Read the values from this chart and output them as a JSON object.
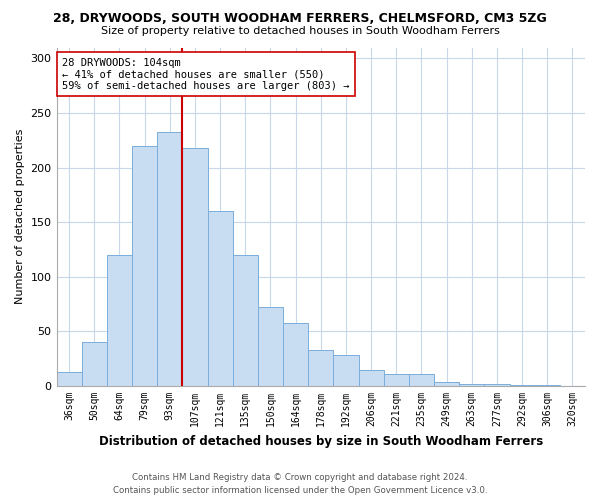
{
  "title_line1": "28, DRYWOODS, SOUTH WOODHAM FERRERS, CHELMSFORD, CM3 5ZG",
  "title_line2": "Size of property relative to detached houses in South Woodham Ferrers",
  "xlabel": "Distribution of detached houses by size in South Woodham Ferrers",
  "ylabel": "Number of detached properties",
  "bar_labels": [
    "36sqm",
    "50sqm",
    "64sqm",
    "79sqm",
    "93sqm",
    "107sqm",
    "121sqm",
    "135sqm",
    "150sqm",
    "164sqm",
    "178sqm",
    "192sqm",
    "206sqm",
    "221sqm",
    "235sqm",
    "249sqm",
    "263sqm",
    "277sqm",
    "292sqm",
    "306sqm",
    "320sqm"
  ],
  "bar_values": [
    13,
    40,
    120,
    220,
    233,
    218,
    160,
    120,
    72,
    58,
    33,
    28,
    15,
    11,
    11,
    4,
    2,
    2,
    1,
    1,
    0
  ],
  "bar_color": "#c9ddf2",
  "bar_edge_color": "#7aaedd",
  "vline_x": 4.5,
  "vline_color": "#cc0000",
  "ylim": [
    0,
    310
  ],
  "yticks": [
    0,
    50,
    100,
    150,
    200,
    250,
    300
  ],
  "annotation_text": "28 DRYWOODS: 104sqm\n← 41% of detached houses are smaller (550)\n59% of semi-detached houses are larger (803) →",
  "annotation_box_color": "#ffffff",
  "annotation_box_edge": "#cc0000",
  "footer_line1": "Contains HM Land Registry data © Crown copyright and database right 2024.",
  "footer_line2": "Contains public sector information licensed under the Open Government Licence v3.0.",
  "background_color": "#ffffff",
  "grid_color": "#c8d8e8"
}
